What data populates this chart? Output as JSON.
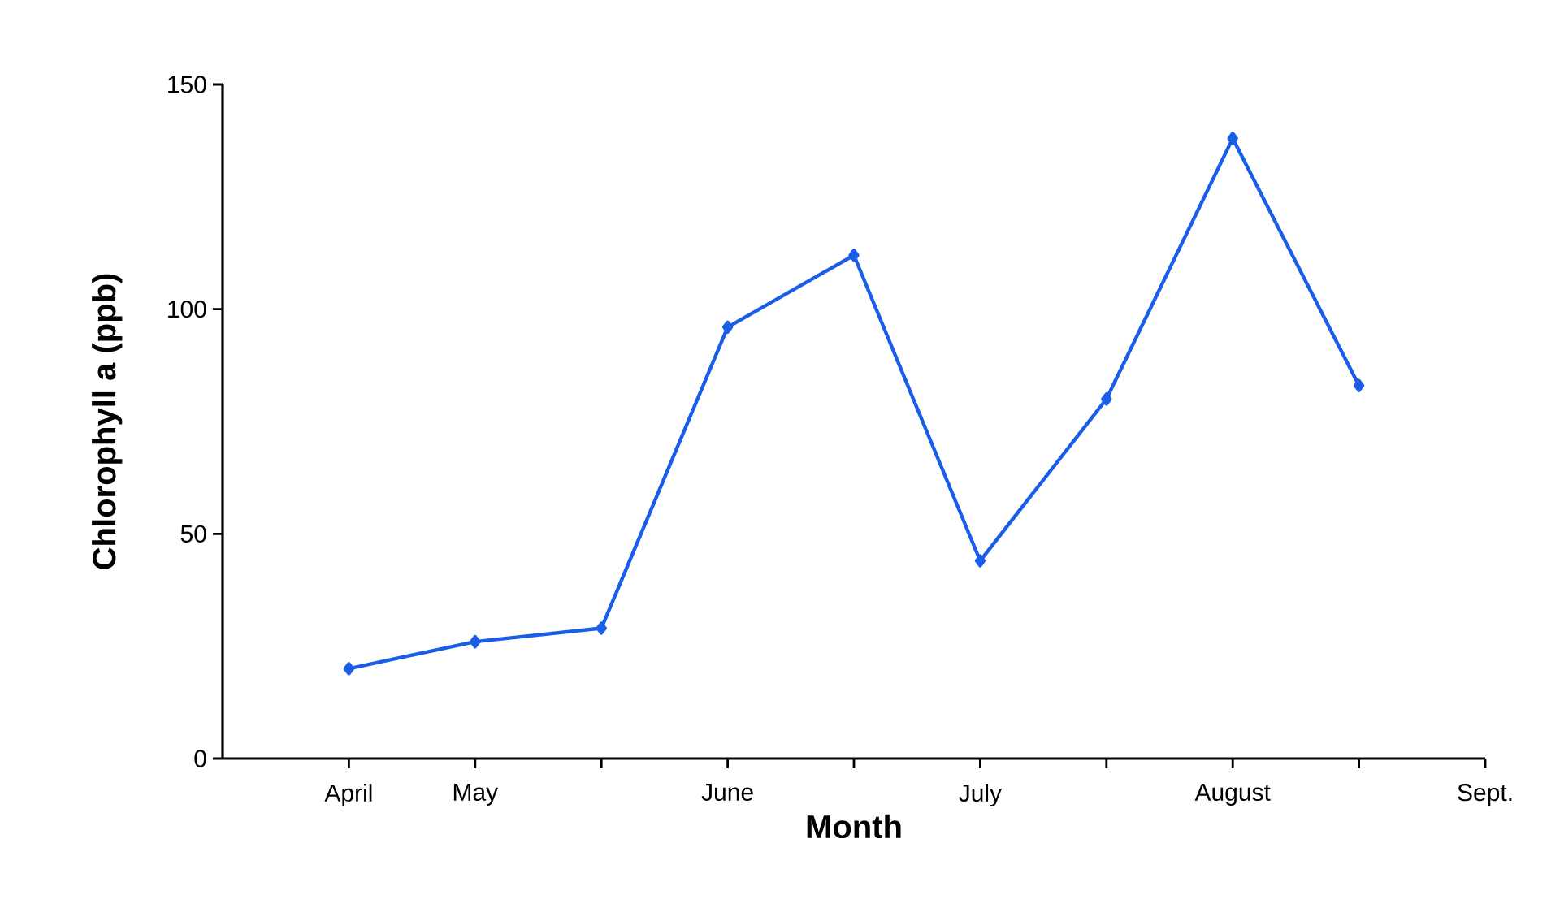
{
  "chart_data": {
    "type": "line",
    "xlabel": "Month",
    "ylabel": "Chlorophyll a (ppb)",
    "categories": [
      "April",
      "May",
      null,
      "June",
      null,
      "July",
      null,
      "August",
      null,
      "Sept."
    ],
    "series": [
      {
        "color": "#1a5ee8",
        "values": [
          20,
          26,
          29,
          96,
          112,
          44,
          80,
          138,
          83,
          null
        ]
      }
    ],
    "ylim": [
      0,
      150
    ],
    "yticks": [
      0,
      50,
      100,
      150
    ],
    "grid": false,
    "marker": "diamond",
    "line_style": "solid"
  }
}
